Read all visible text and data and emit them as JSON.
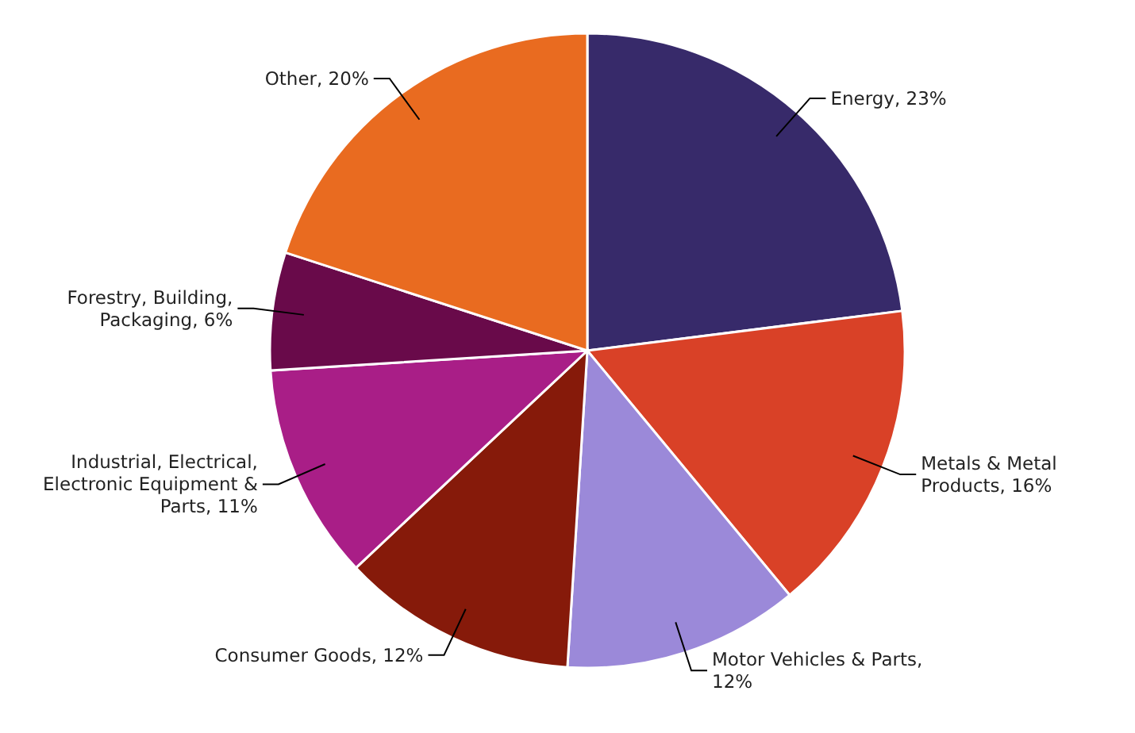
{
  "chart_data": {
    "type": "pie",
    "categories": [
      "Energy, 23%",
      "Metals & Metal Products, 16%",
      "Motor Vehicles & Parts, 12%",
      "Consumer Goods, 12%",
      "Industrial, Electrical, Electronic Equipment & Parts, 11%",
      "Forestry, Building, Packaging, 6%",
      "Other, 20%"
    ],
    "values": [
      23,
      16,
      12,
      12,
      11,
      6,
      20
    ],
    "colors": [
      "#372a6a",
      "#d94127",
      "#9b89d9",
      "#861a0a",
      "#a91e87",
      "#690a4a",
      "#e96b20"
    ]
  }
}
